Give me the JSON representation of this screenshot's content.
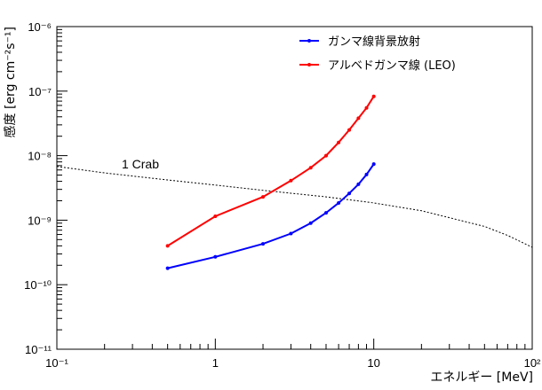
{
  "chart_data": {
    "type": "line",
    "xlabel": "エネルギー [MeV]",
    "ylabel": "感度 [erg cm⁻²s⁻¹]",
    "xscale": "log",
    "yscale": "log",
    "xlim": [
      0.1,
      100
    ],
    "ylim": [
      1e-11,
      1e-06
    ],
    "x_tick_labels": [
      "10⁻¹",
      "1",
      "10",
      "10²"
    ],
    "y_tick_labels": [
      "10⁻¹¹",
      "10⁻¹⁰",
      "10⁻⁹",
      "10⁻⁸",
      "10⁻⁷",
      "10⁻⁶"
    ],
    "grid": false,
    "legend": {
      "placement": "top-right"
    },
    "series": [
      {
        "name": "ガンマ線背景放射",
        "color": "#0000ff",
        "marker": "dot",
        "x": [
          0.5,
          1,
          2,
          3,
          4,
          5,
          6,
          7,
          8,
          9,
          10
        ],
        "y": [
          1.8e-10,
          2.7e-10,
          4.3e-10,
          6.2e-10,
          9e-10,
          1.3e-09,
          1.85e-09,
          2.6e-09,
          3.6e-09,
          5.1e-09,
          7.4e-09
        ]
      },
      {
        "name": "アルベドガンマ線 (LEO)",
        "color": "#ff0000",
        "marker": "dot",
        "x": [
          0.5,
          1,
          2,
          3,
          4,
          5,
          6,
          7,
          8,
          9,
          10
        ],
        "y": [
          4e-10,
          1.15e-09,
          2.3e-09,
          4.1e-09,
          6.5e-09,
          1e-08,
          1.6e-08,
          2.5e-08,
          3.8e-08,
          5.5e-08,
          8.3e-08
        ]
      }
    ],
    "reference_line": {
      "label": "1 Crab",
      "color": "#000000",
      "style": "dotted",
      "x": [
        0.1,
        0.2,
        0.5,
        1,
        2,
        5,
        10,
        20,
        50,
        70,
        100
      ],
      "y": [
        6.8e-09,
        5.4e-09,
        4.2e-09,
        3.5e-09,
        2.9e-09,
        2.3e-09,
        1.85e-09,
        1.4e-09,
        8e-10,
        5.8e-10,
        3.8e-10
      ]
    },
    "annotations": [
      {
        "text": "1 Crab",
        "x": 0.25,
        "y": 6e-09
      }
    ]
  }
}
